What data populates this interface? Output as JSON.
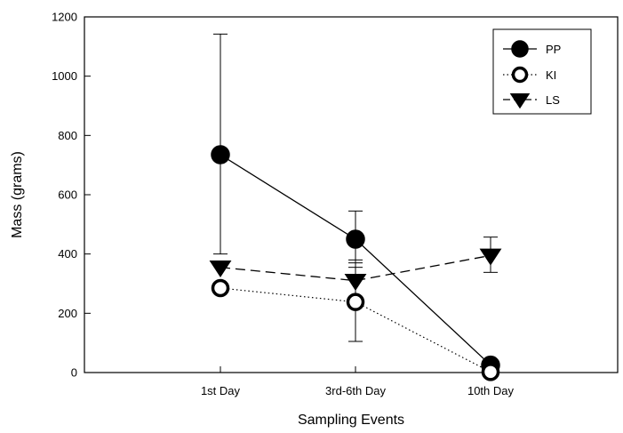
{
  "chart_data": {
    "type": "line",
    "title": "",
    "xlabel": "Sampling Events",
    "ylabel": "Mass (grams)",
    "categories": [
      "1st Day",
      "3rd-6th Day",
      "10th Day"
    ],
    "ylim": [
      0,
      1200
    ],
    "yticks": [
      0,
      200,
      400,
      600,
      800,
      1000,
      1200
    ],
    "grid": false,
    "legend_position": "top-right",
    "series": [
      {
        "name": "PP",
        "marker": "filled-circle",
        "line": "solid",
        "values": [
          735,
          450,
          25
        ],
        "error_upper": [
          1142,
          545,
          null
        ],
        "error_lower": [
          400,
          355,
          null
        ]
      },
      {
        "name": "KI",
        "marker": "open-circle",
        "line": "dotted",
        "values": [
          285,
          238,
          2
        ],
        "error_upper": [
          null,
          380,
          null
        ],
        "error_lower": [
          null,
          105,
          null
        ]
      },
      {
        "name": "LS",
        "marker": "filled-triangle-down",
        "line": "dashed",
        "values": [
          355,
          310,
          395
        ],
        "error_upper": [
          null,
          370,
          457
        ],
        "error_lower": [
          null,
          255,
          338
        ]
      }
    ]
  }
}
